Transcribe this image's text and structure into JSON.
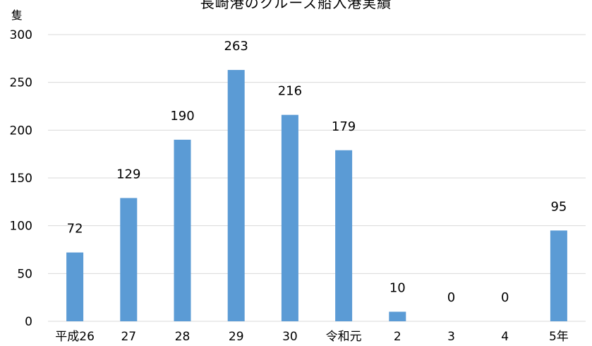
{
  "chart_data": {
    "type": "bar",
    "title": "長崎港のクルーズ船入港実績",
    "ylabel": "隻",
    "xlabel": "",
    "categories": [
      "平成26",
      "27",
      "28",
      "29",
      "30",
      "令和元",
      "2",
      "3",
      "4",
      "5年"
    ],
    "values": [
      72,
      129,
      190,
      263,
      216,
      179,
      10,
      0,
      0,
      95
    ],
    "data_labels": [
      "72",
      "129",
      "190",
      "263",
      "216",
      "179",
      "10",
      "0",
      "0",
      "95"
    ],
    "ylim": [
      0,
      300
    ],
    "yticks": [
      0,
      50,
      100,
      150,
      200,
      250,
      300
    ],
    "grid": true,
    "legend": "none",
    "bar_color": "#5b9bd5",
    "grid_color": "#d9d9d9"
  }
}
